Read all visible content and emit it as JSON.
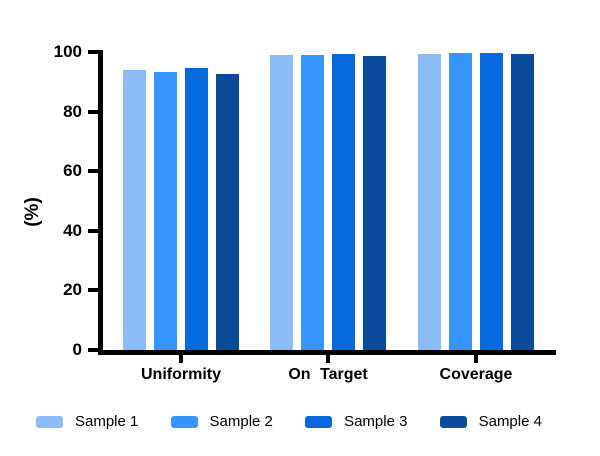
{
  "chart_data": {
    "type": "bar",
    "title": "",
    "ylabel": "(%)",
    "xlabel": "",
    "ylim": [
      0,
      100
    ],
    "yticks": [
      0,
      20,
      40,
      60,
      80,
      100
    ],
    "categories": [
      "Uniformity",
      "On Target",
      "Coverage"
    ],
    "series": [
      {
        "name": "Sample 1",
        "color": "#8BBCF5",
        "values": [
          93.8,
          98.9,
          99.3
        ]
      },
      {
        "name": "Sample 2",
        "color": "#3595FC",
        "values": [
          93.2,
          99.1,
          99.8
        ]
      },
      {
        "name": "Sample 3",
        "color": "#0669DC",
        "values": [
          94.7,
          99.3,
          99.5
        ]
      },
      {
        "name": "Sample 4",
        "color": "#0A4C9B",
        "values": [
          92.5,
          98.8,
          99.2
        ]
      }
    ],
    "legend_position": "bottom",
    "grid": false,
    "axis_color": "#000000"
  }
}
